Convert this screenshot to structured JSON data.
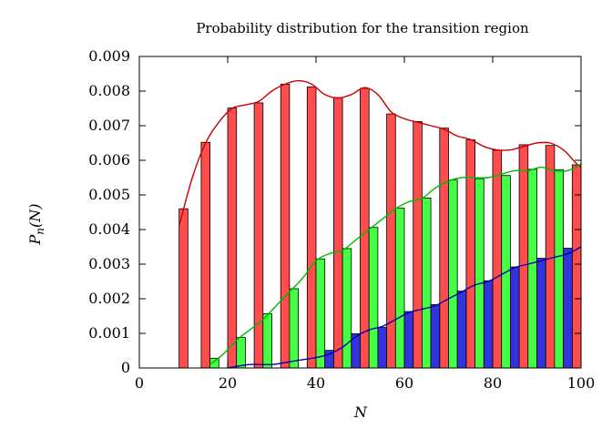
{
  "chart_data": {
    "type": "bar",
    "title": "Probability distribution for the transition region",
    "xlabel": "N",
    "ylabel_main": "P",
    "ylabel_sub": "n",
    "ylabel_arg": "(N)",
    "xlim": [
      0,
      100
    ],
    "ylim": [
      0,
      0.009
    ],
    "x_ticks": [
      0,
      20,
      40,
      60,
      80,
      100
    ],
    "x_tick_labels": [
      "0",
      "20",
      "40",
      "60",
      "80",
      "100"
    ],
    "y_ticks": [
      0,
      0.001,
      0.002,
      0.003,
      0.004,
      0.005,
      0.006,
      0.007,
      0.008,
      0.009
    ],
    "y_tick_labels": [
      "0",
      "0.001",
      "0.002",
      "0.003",
      "0.004",
      "0.005",
      "0.006",
      "0.007",
      "0.008",
      "0.009"
    ],
    "bar_width": 2,
    "series": [
      {
        "name": "red",
        "color": "#ff4c4c",
        "curve_color": "#cc0000",
        "x": [
          10,
          15,
          21,
          27,
          33,
          39,
          45,
          51,
          57,
          63,
          69,
          75,
          81,
          87,
          93,
          99
        ],
        "values": [
          0.0046,
          0.00652,
          0.00751,
          0.00766,
          0.0082,
          0.00812,
          0.00781,
          0.00808,
          0.00734,
          0.00712,
          0.00693,
          0.00659,
          0.00629,
          0.00645,
          0.00643,
          0.00587
        ]
      },
      {
        "name": "green",
        "color": "#44ff44",
        "curve_color": "#00bb00",
        "x": [
          17,
          23,
          29,
          35,
          41,
          47,
          53,
          59,
          65,
          71,
          77,
          83,
          89,
          95
        ],
        "values": [
          0.00028,
          0.00088,
          0.00157,
          0.00229,
          0.00315,
          0.00345,
          0.00406,
          0.00462,
          0.00491,
          0.00543,
          0.00547,
          0.00556,
          0.00574,
          0.00573
        ]
      },
      {
        "name": "blue",
        "color": "#3333dd",
        "curve_color": "#0000aa",
        "x": [
          43,
          49,
          55,
          61,
          67,
          73,
          79,
          85,
          91,
          97
        ],
        "values": [
          0.00051,
          0.00099,
          0.00117,
          0.00163,
          0.00183,
          0.00222,
          0.00252,
          0.00292,
          0.00317,
          0.00346
        ]
      }
    ],
    "curves": [
      {
        "name": "red-fit",
        "color": "#cc0000",
        "x": [
          9,
          12,
          15,
          18,
          21,
          24,
          27,
          30,
          33,
          36,
          39,
          42,
          45,
          48,
          51,
          54,
          57,
          60,
          63,
          66,
          69,
          72,
          75,
          78,
          81,
          84,
          87,
          90,
          93,
          96,
          99,
          100
        ],
        "values": [
          0.0041,
          0.0055,
          0.0065,
          0.0071,
          0.0075,
          0.0076,
          0.0077,
          0.008,
          0.0082,
          0.0083,
          0.0082,
          0.0079,
          0.0078,
          0.0079,
          0.0081,
          0.0079,
          0.0074,
          0.0072,
          0.0071,
          0.007,
          0.0069,
          0.0067,
          0.0066,
          0.0064,
          0.0063,
          0.0063,
          0.0064,
          0.0065,
          0.0065,
          0.0063,
          0.0059,
          0.0058
        ]
      },
      {
        "name": "green-fit",
        "color": "#00bb00",
        "x": [
          16,
          19,
          22,
          25,
          28,
          31,
          34,
          37,
          40,
          43,
          46,
          49,
          52,
          55,
          58,
          61,
          64,
          67,
          70,
          73,
          76,
          79,
          82,
          85,
          88,
          91,
          94,
          97,
          100
        ],
        "values": [
          0.0001,
          0.0004,
          0.0008,
          0.0011,
          0.0014,
          0.0018,
          0.0022,
          0.0026,
          0.0031,
          0.0033,
          0.0034,
          0.0037,
          0.004,
          0.0043,
          0.0046,
          0.0048,
          0.0049,
          0.0052,
          0.0054,
          0.0055,
          0.0055,
          0.0055,
          0.0056,
          0.0057,
          0.0057,
          0.0058,
          0.0057,
          0.0057,
          0.0059
        ]
      },
      {
        "name": "blue-fit",
        "color": "#0000aa",
        "x": [
          20,
          25,
          30,
          35,
          40,
          43,
          46,
          49,
          52,
          55,
          58,
          61,
          64,
          67,
          70,
          73,
          76,
          79,
          82,
          85,
          88,
          91,
          94,
          97,
          100
        ],
        "values": [
          0.0,
          0.0001,
          0.0001,
          0.0002,
          0.0003,
          0.0004,
          0.0006,
          0.0009,
          0.0011,
          0.0012,
          0.0014,
          0.0016,
          0.0017,
          0.0018,
          0.002,
          0.0022,
          0.0024,
          0.0025,
          0.0027,
          0.0029,
          0.003,
          0.0031,
          0.0032,
          0.0033,
          0.0035
        ]
      }
    ]
  }
}
